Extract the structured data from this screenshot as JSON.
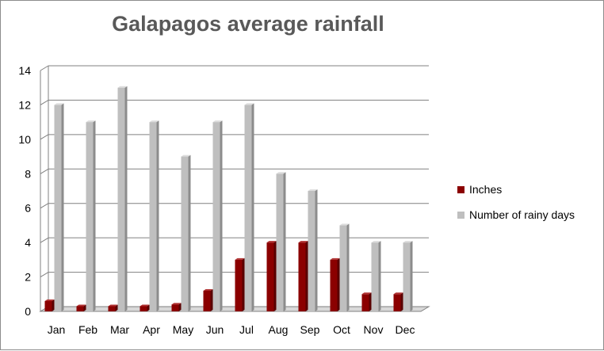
{
  "chart_data": {
    "type": "bar",
    "title": "Galapagos average rainfall",
    "categories": [
      "Jan",
      "Feb",
      "Mar",
      "Apr",
      "May",
      "Jun",
      "Jul",
      "Aug",
      "Sep",
      "Oct",
      "Nov",
      "Dec"
    ],
    "series": [
      {
        "name": "Inches",
        "values": [
          0.6,
          0.3,
          0.3,
          0.3,
          0.4,
          1.2,
          3,
          4,
          4,
          3,
          1,
          1
        ],
        "color": "#8B0000"
      },
      {
        "name": "Number of rainy days",
        "values": [
          12,
          11,
          13,
          11,
          9,
          11,
          12,
          8,
          7,
          5,
          4,
          4
        ],
        "color": "#BFBFBF"
      }
    ],
    "ylim": [
      0,
      14
    ],
    "yticks": [
      0,
      2,
      4,
      6,
      8,
      10,
      12,
      14
    ],
    "grid": true,
    "legend_position": "right"
  }
}
